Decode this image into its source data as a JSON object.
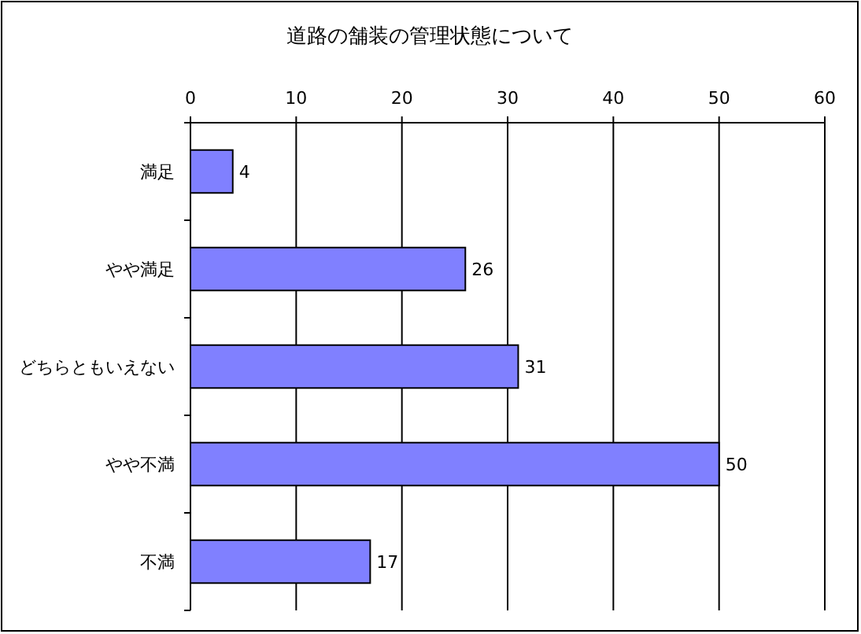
{
  "chart_data": {
    "type": "bar",
    "orientation": "horizontal",
    "title": "道路の舗装の管理状態について",
    "categories": [
      "満足",
      "やや満足",
      "どちらともいえない",
      "やや不満",
      "不満"
    ],
    "values": [
      4,
      26,
      31,
      50,
      17
    ],
    "color": "#8080ff",
    "xlim": [
      0,
      60
    ],
    "xticks": [
      0,
      10,
      20,
      30,
      40,
      50,
      60
    ],
    "grid": "x",
    "data_labels": true
  }
}
